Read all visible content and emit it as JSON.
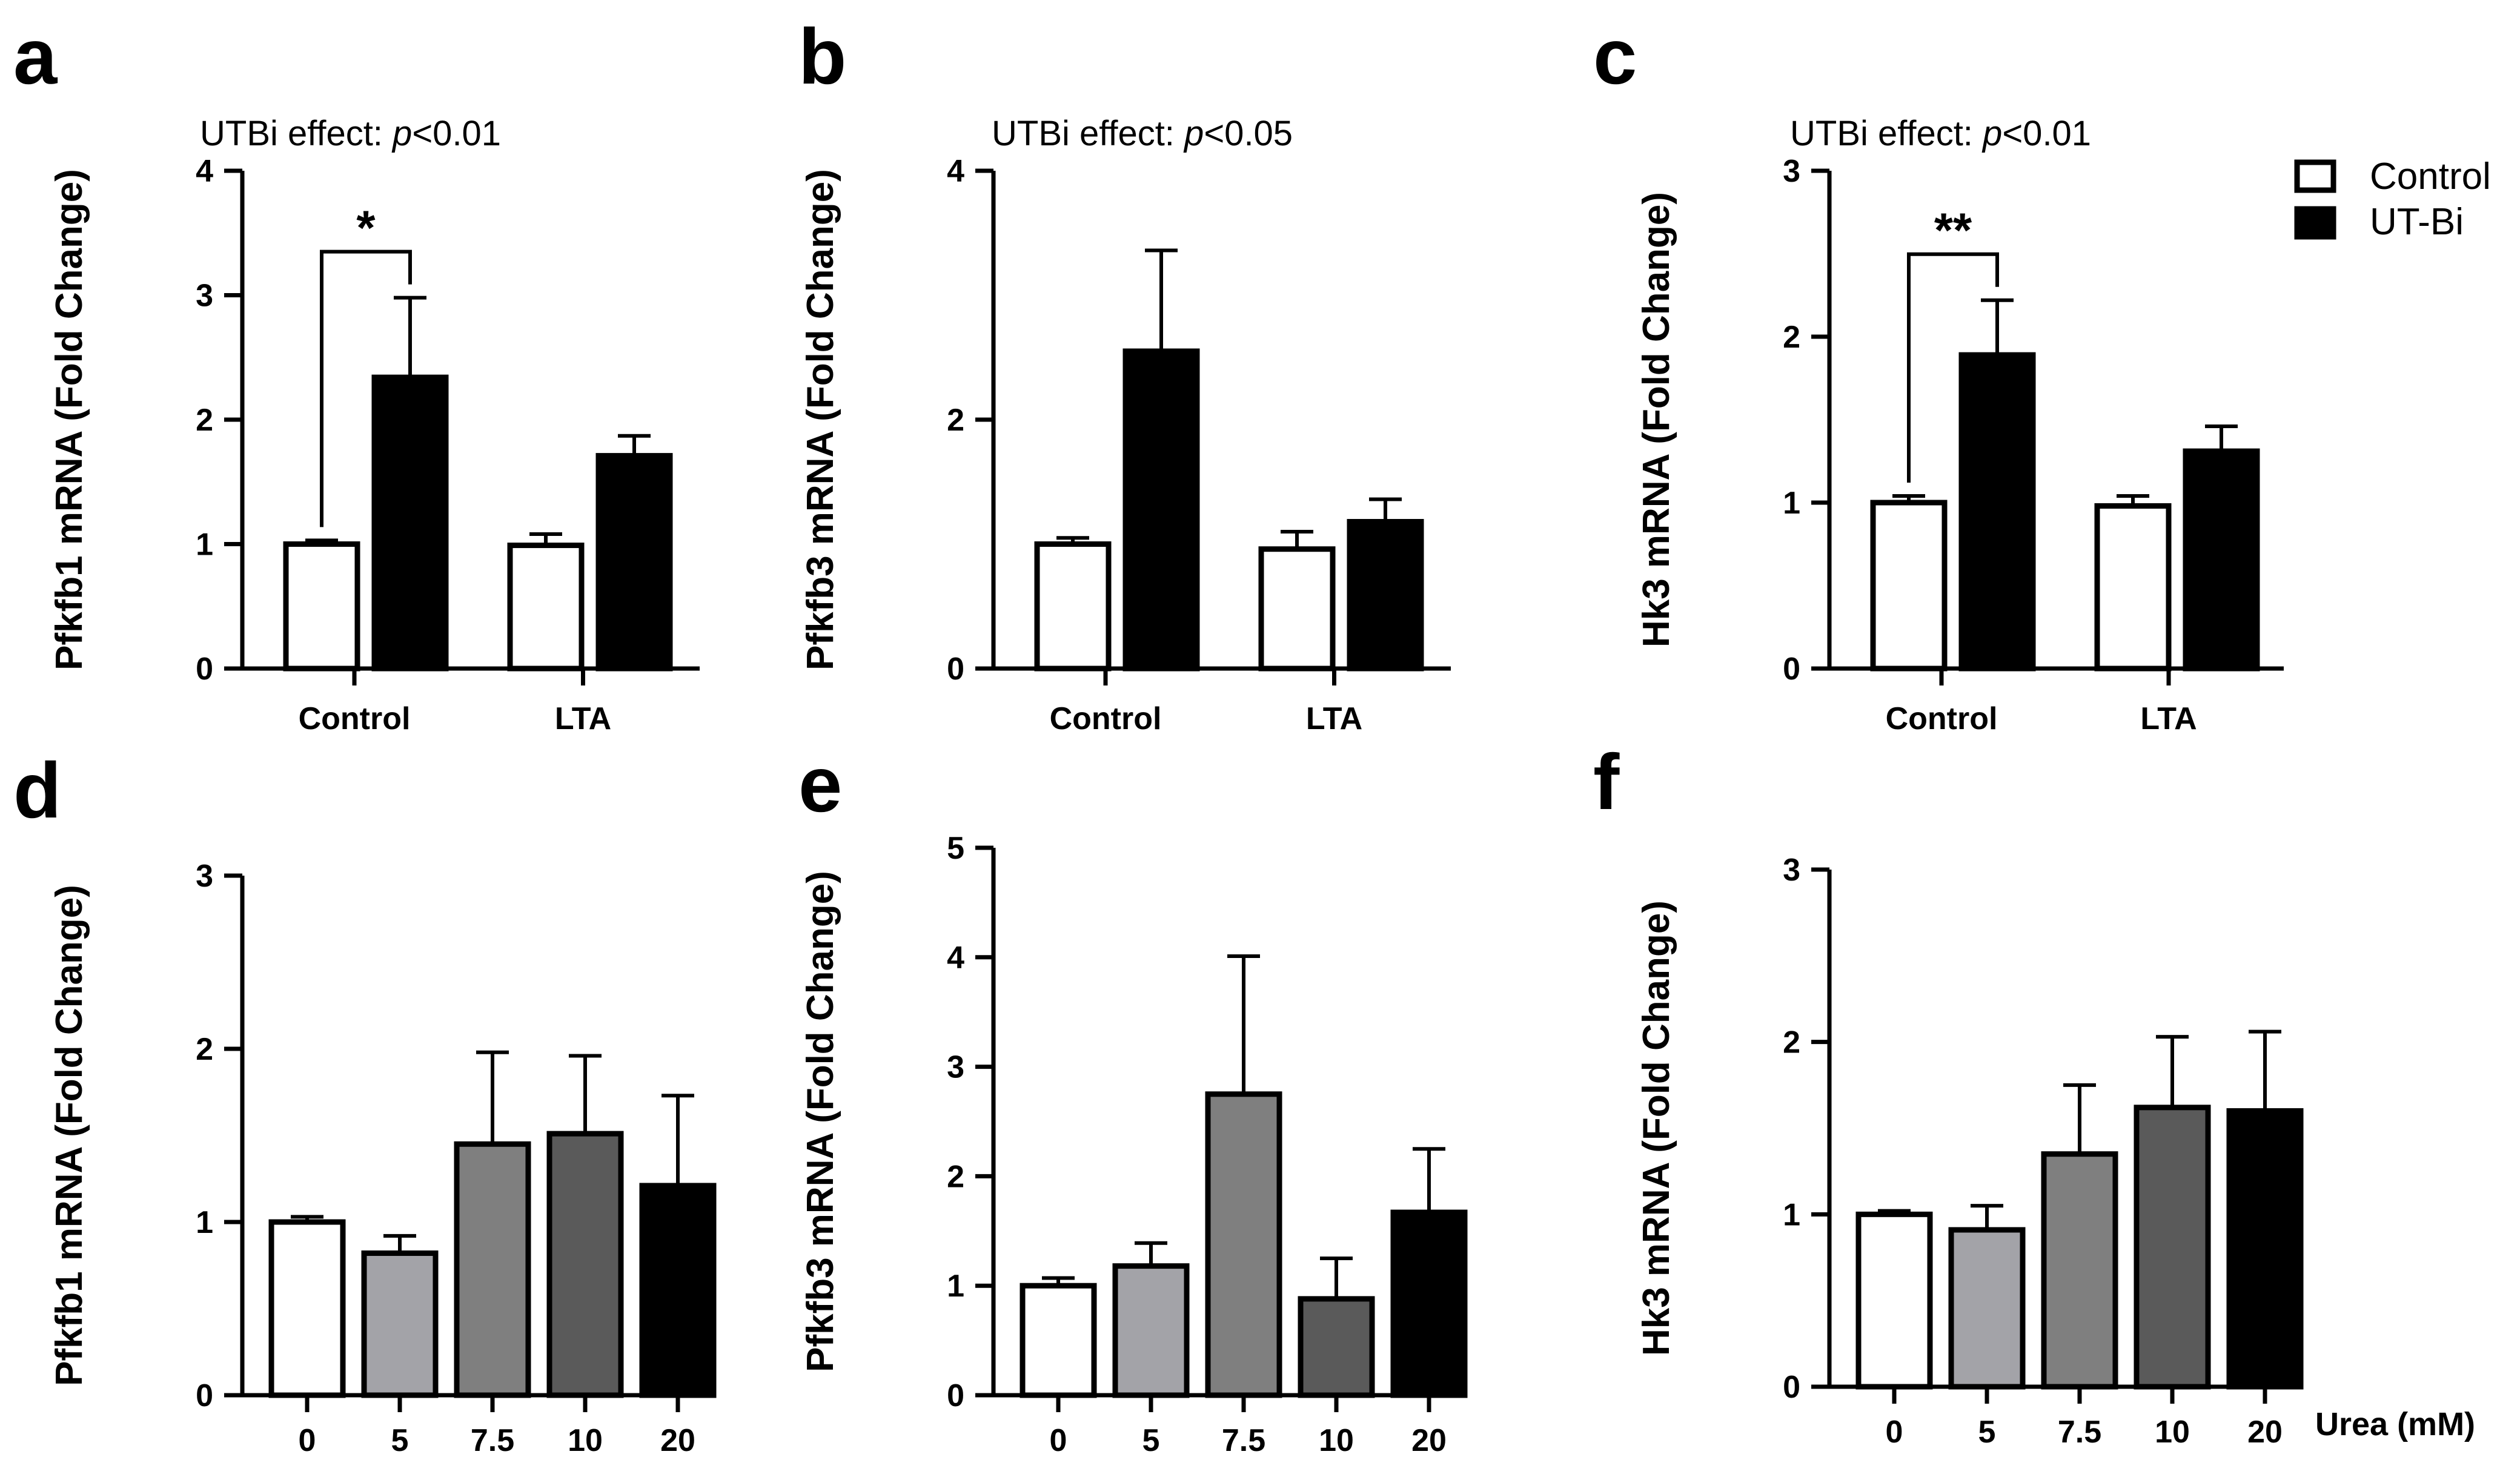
{
  "legend": {
    "entries": [
      {
        "label": "Control",
        "fill": "#ffffff"
      },
      {
        "label": "UT-Bi",
        "fill": "#000000"
      }
    ]
  },
  "xunit_label": "Urea (mM)",
  "chart_data": [
    {
      "id": "a",
      "type": "bar",
      "letter": "a",
      "annotation_prefix": "UTBi effect: ",
      "annotation_p": "p",
      "annotation_value": "<0.01",
      "ylabel": "Pfkfb1 mRNA (Fold Change)",
      "ylim": [
        0,
        4
      ],
      "yticks": [
        0,
        1,
        2,
        3,
        4
      ],
      "categories": [
        "Control",
        "LTA"
      ],
      "series": [
        {
          "name": "Control",
          "fill": "#ffffff",
          "values": [
            1.0,
            0.99
          ],
          "errors": [
            0.03,
            0.09
          ]
        },
        {
          "name": "UT-Bi",
          "fill": "#000000",
          "values": [
            2.34,
            1.71
          ],
          "errors": [
            0.64,
            0.16
          ]
        }
      ],
      "significance": [
        {
          "category": 0,
          "label": "*"
        }
      ]
    },
    {
      "id": "b",
      "type": "bar",
      "letter": "b",
      "annotation_prefix": "UTBi effect: ",
      "annotation_p": "p",
      "annotation_value": "<0.05",
      "ylabel": "Pfkfb3 mRNA (Fold Change)",
      "ylim": [
        0,
        4
      ],
      "yticks": [
        0,
        2,
        4
      ],
      "categories": [
        "Control",
        "LTA"
      ],
      "series": [
        {
          "name": "Control",
          "fill": "#ffffff",
          "values": [
            1.0,
            0.96
          ],
          "errors": [
            0.05,
            0.14
          ]
        },
        {
          "name": "UT-Bi",
          "fill": "#000000",
          "values": [
            2.55,
            1.18
          ],
          "errors": [
            0.81,
            0.18
          ]
        }
      ],
      "significance": []
    },
    {
      "id": "c",
      "type": "bar",
      "letter": "c",
      "annotation_prefix": "UTBi effect: ",
      "annotation_p": "p",
      "annotation_value": "<0.01",
      "ylabel": "Hk3 mRNA (Fold Change)",
      "ylim": [
        0,
        3
      ],
      "yticks": [
        0,
        1,
        2,
        3
      ],
      "categories": [
        "Control",
        "LTA"
      ],
      "series": [
        {
          "name": "Control",
          "fill": "#ffffff",
          "values": [
            1.0,
            0.98
          ],
          "errors": [
            0.04,
            0.06
          ]
        },
        {
          "name": "UT-Bi",
          "fill": "#000000",
          "values": [
            1.89,
            1.31
          ],
          "errors": [
            0.33,
            0.15
          ]
        }
      ],
      "significance": [
        {
          "category": 0,
          "label": "**"
        }
      ]
    },
    {
      "id": "d",
      "type": "bar",
      "letter": "d",
      "ylabel": "Pfkfb1 mRNA (Fold Change)",
      "ylim": [
        0,
        3
      ],
      "yticks": [
        0,
        1,
        2,
        3
      ],
      "categories": [
        "0",
        "5",
        "7.5",
        "10",
        "20"
      ],
      "values": [
        1.0,
        0.82,
        1.45,
        1.51,
        1.21
      ],
      "errors": [
        0.03,
        0.1,
        0.53,
        0.45,
        0.52
      ],
      "colors": [
        "#ffffff",
        "#a3a3a8",
        "#7f7f7f",
        "#5a5a5a",
        "#000000"
      ]
    },
    {
      "id": "e",
      "type": "bar",
      "letter": "e",
      "ylabel": "Pfkfb3 mRNA (Fold Change)",
      "ylim": [
        0,
        5
      ],
      "yticks": [
        0,
        1,
        2,
        3,
        4,
        5
      ],
      "categories": [
        "0",
        "5",
        "7.5",
        "10",
        "20"
      ],
      "values": [
        1.0,
        1.18,
        2.75,
        0.88,
        1.67
      ],
      "errors": [
        0.07,
        0.21,
        1.26,
        0.37,
        0.58
      ],
      "colors": [
        "#ffffff",
        "#a3a3a8",
        "#7f7f7f",
        "#5a5a5a",
        "#000000"
      ]
    },
    {
      "id": "f",
      "type": "bar",
      "letter": "f",
      "ylabel": "Hk3 mRNA (Fold Change)",
      "ylim": [
        0,
        3
      ],
      "yticks": [
        0,
        1,
        2,
        3
      ],
      "categories": [
        "0",
        "5",
        "7.5",
        "10",
        "20"
      ],
      "values": [
        1.0,
        0.91,
        1.35,
        1.62,
        1.6
      ],
      "errors": [
        0.02,
        0.14,
        0.4,
        0.41,
        0.46
      ],
      "colors": [
        "#ffffff",
        "#a3a3a8",
        "#7f7f7f",
        "#5a5a5a",
        "#000000"
      ]
    }
  ]
}
